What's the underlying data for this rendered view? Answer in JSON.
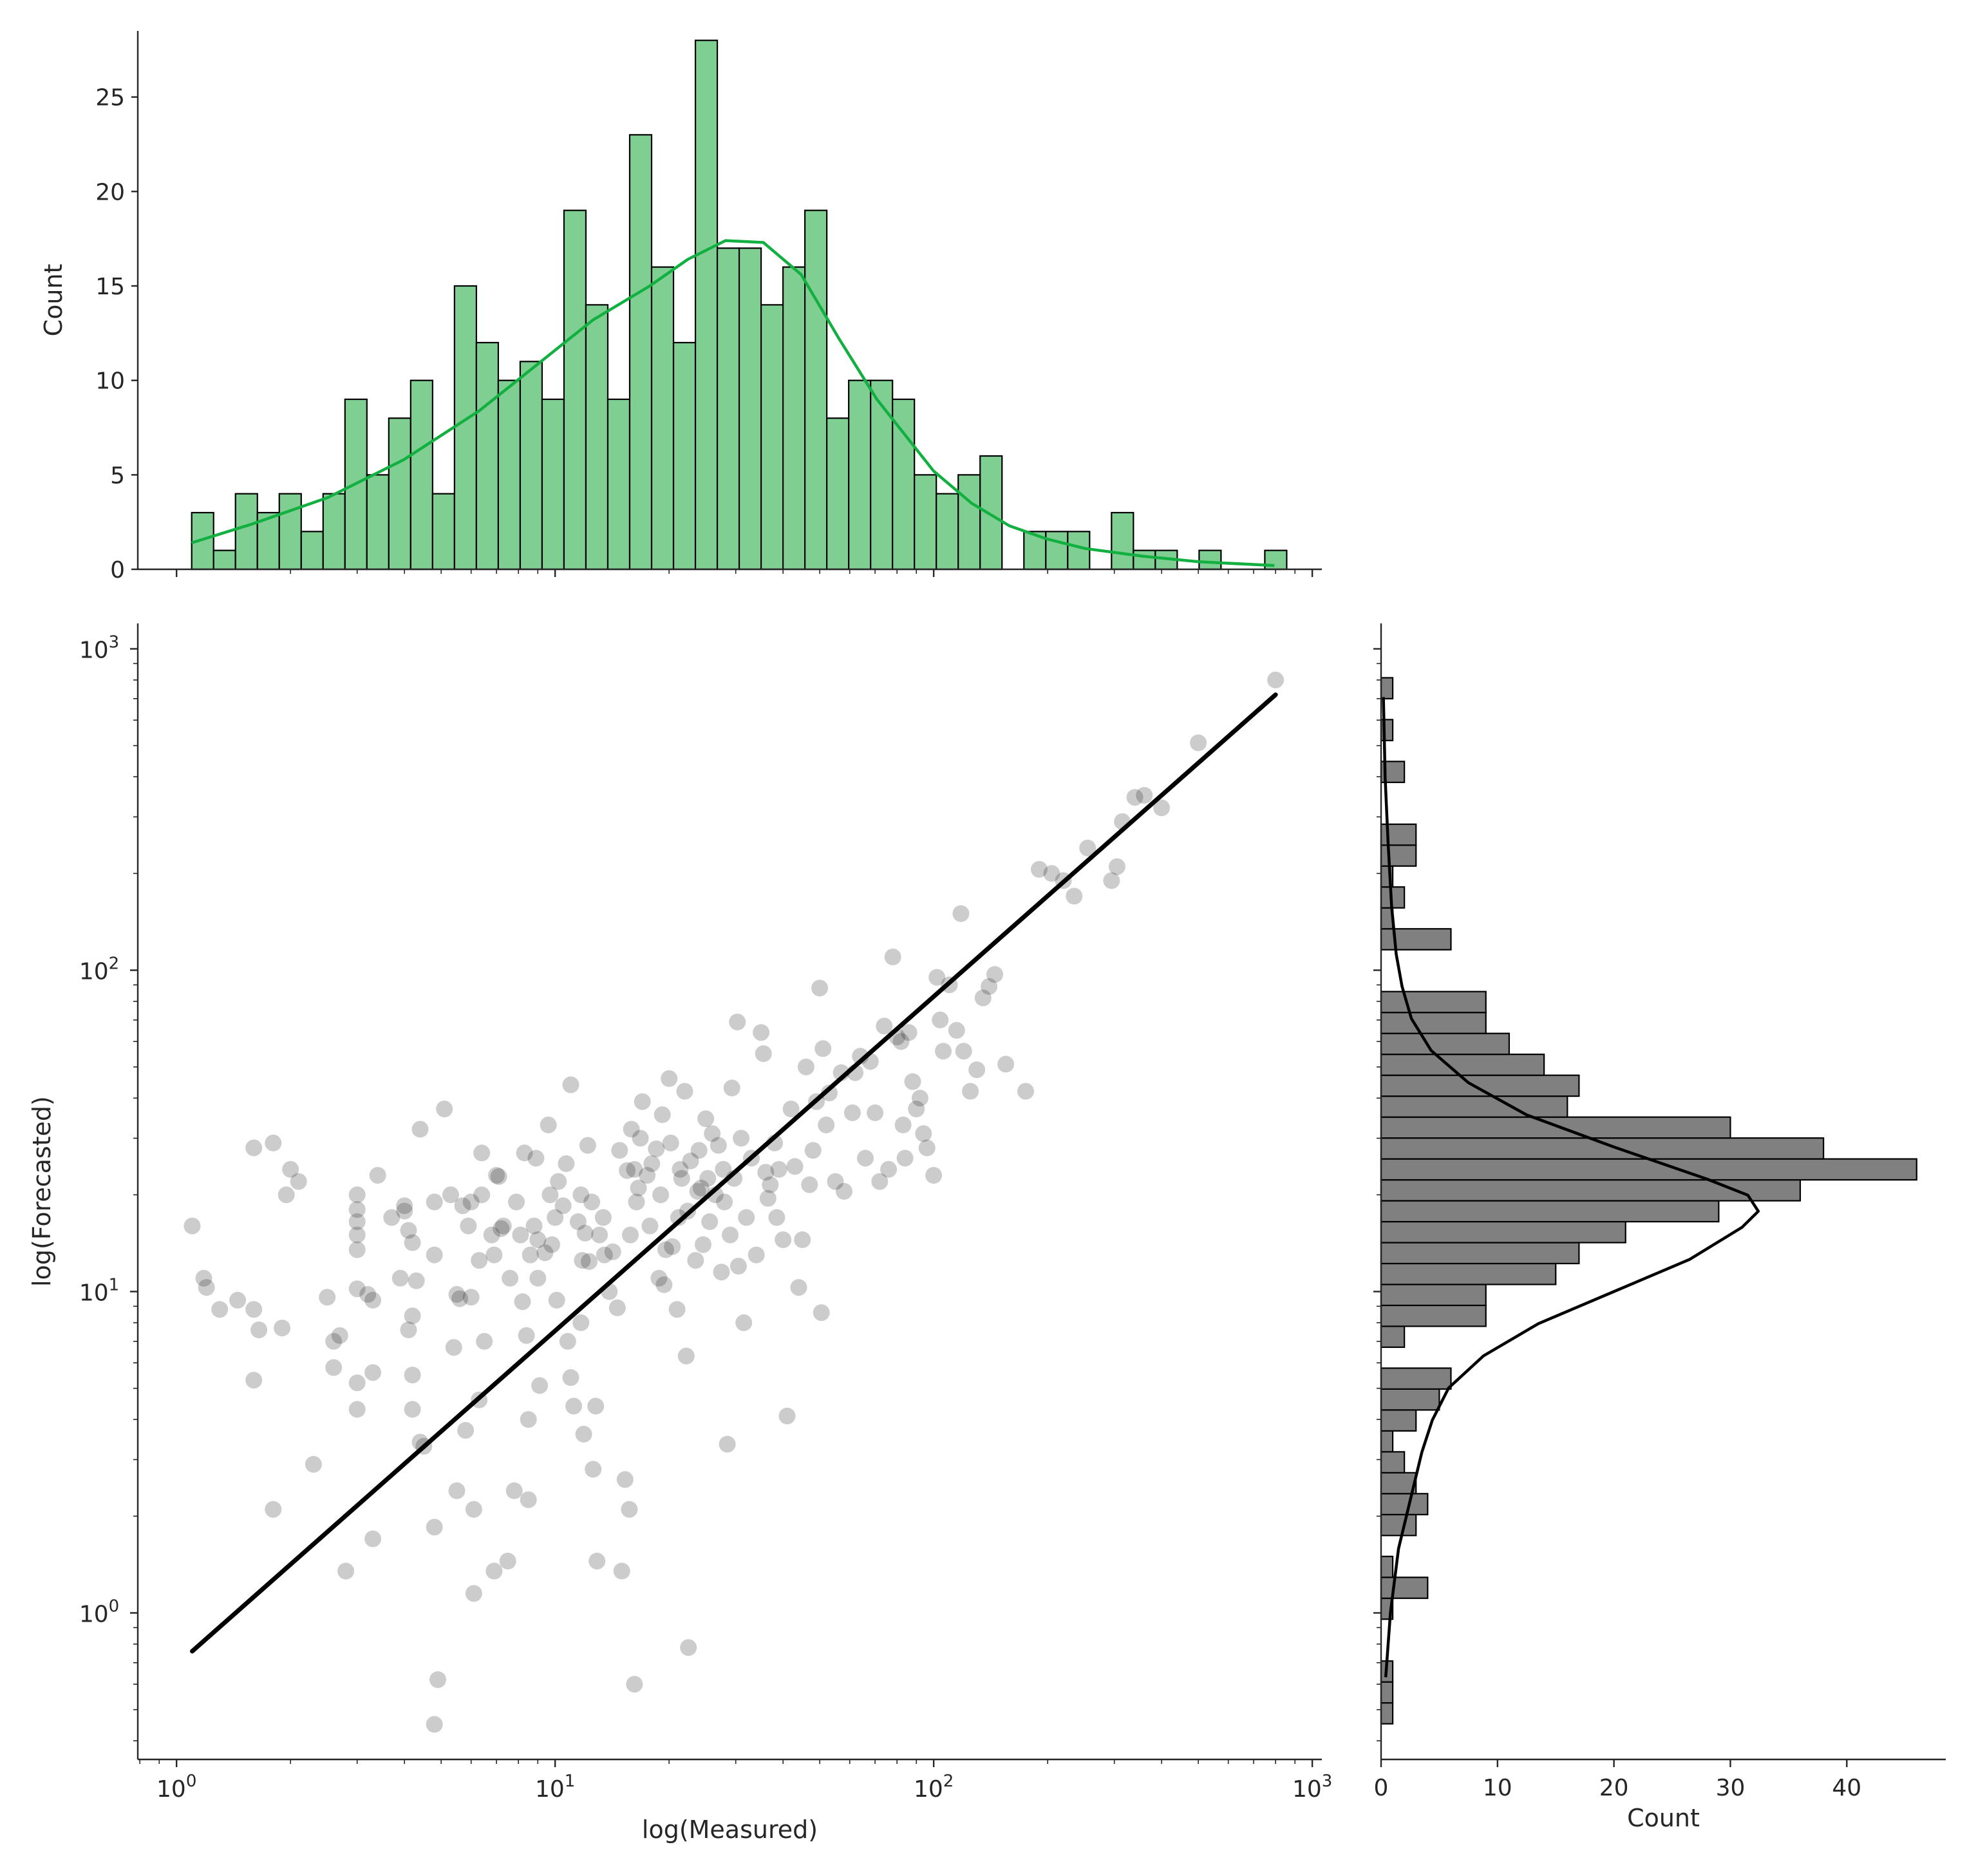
{
  "chart_data": [
    {
      "panel": "top-marginal",
      "type": "bar",
      "xscale": "log",
      "xlim": [
        0.79,
        1060
      ],
      "ylim": [
        0,
        28.5
      ],
      "ylabel": "Count",
      "yticks": [
        0,
        5,
        10,
        15,
        20,
        25
      ],
      "bar_color": "#7fcf93",
      "kde_color": "#12b040",
      "bins": {
        "log10_start": 0.04,
        "log10_width": 0.05785,
        "counts": [
          3,
          1,
          4,
          3,
          4,
          2,
          4,
          9,
          5,
          8,
          10,
          4,
          15,
          12,
          10,
          11,
          9,
          19,
          14,
          9,
          23,
          16,
          12,
          28,
          17,
          17,
          14,
          16,
          19,
          8,
          10,
          10,
          9,
          5,
          4,
          5,
          6,
          0,
          2,
          2,
          2,
          0,
          3,
          1,
          1,
          0,
          1,
          0,
          0,
          1
        ]
      },
      "kde": {
        "log10_x": [
          0.04,
          0.2,
          0.4,
          0.6,
          0.8,
          0.95,
          1.1,
          1.25,
          1.35,
          1.45,
          1.55,
          1.65,
          1.75,
          1.85,
          2.0,
          2.1,
          2.2,
          2.3,
          2.4,
          2.55,
          2.7,
          2.9
        ],
        "count": [
          1.4,
          2.4,
          3.8,
          5.8,
          8.4,
          10.8,
          13.2,
          15.0,
          16.4,
          17.4,
          17.3,
          15.6,
          12.2,
          9.0,
          5.2,
          3.5,
          2.3,
          1.6,
          1.1,
          0.7,
          0.4,
          0.2
        ]
      }
    },
    {
      "panel": "main-scatter",
      "type": "scatter",
      "xscale": "log",
      "yscale": "log",
      "xlabel": "log(Measured)",
      "ylabel": "log(Forecasted)",
      "xlim": [
        0.79,
        1060
      ],
      "ylim": [
        0.35,
        1200
      ],
      "xtick_labels": [
        {
          "base": "10",
          "exp": "0",
          "value": 1
        },
        {
          "base": "10",
          "exp": "1",
          "value": 10
        },
        {
          "base": "10",
          "exp": "2",
          "value": 100
        },
        {
          "base": "10",
          "exp": "3",
          "value": 1000
        }
      ],
      "ytick_labels": [
        {
          "base": "10",
          "exp": "0",
          "value": 1
        },
        {
          "base": "10",
          "exp": "1",
          "value": 10
        },
        {
          "base": "10",
          "exp": "2",
          "value": 100
        },
        {
          "base": "10",
          "exp": "3",
          "value": 1000
        }
      ],
      "point_color": "#000000",
      "point_alpha": 0.2,
      "fit_line": {
        "x": [
          1.1,
          800
        ],
        "y": [
          0.76,
          720
        ],
        "color": "#000000"
      },
      "points": [
        [
          1.1,
          16
        ],
        [
          1.18,
          11
        ],
        [
          1.2,
          10.3
        ],
        [
          1.3,
          8.8
        ],
        [
          1.45,
          9.4
        ],
        [
          1.6,
          8.8
        ],
        [
          1.65,
          7.6
        ],
        [
          1.6,
          5.3
        ],
        [
          1.6,
          28
        ],
        [
          1.8,
          29
        ],
        [
          1.95,
          20
        ],
        [
          2.0,
          24
        ],
        [
          2.1,
          22
        ],
        [
          1.9,
          7.7
        ],
        [
          1.8,
          2.1
        ],
        [
          2.3,
          2.9
        ],
        [
          2.5,
          9.6
        ],
        [
          2.6,
          7.0
        ],
        [
          2.7,
          7.3
        ],
        [
          2.8,
          1.35
        ],
        [
          2.6,
          5.8
        ],
        [
          3.0,
          4.3
        ],
        [
          3.0,
          5.2
        ],
        [
          3.0,
          10.2
        ],
        [
          3.0,
          13.5
        ],
        [
          3.0,
          15
        ],
        [
          3.0,
          16.5
        ],
        [
          3.0,
          18
        ],
        [
          3.0,
          20
        ],
        [
          3.2,
          9.8
        ],
        [
          3.3,
          9.4
        ],
        [
          3.4,
          23
        ],
        [
          3.3,
          5.6
        ],
        [
          3.3,
          1.7
        ],
        [
          3.7,
          17
        ],
        [
          3.9,
          11
        ],
        [
          4.0,
          18.5
        ],
        [
          4.0,
          17.8
        ],
        [
          4.1,
          7.6
        ],
        [
          4.1,
          15.5
        ],
        [
          4.2,
          14.2
        ],
        [
          4.2,
          8.4
        ],
        [
          4.2,
          5.5
        ],
        [
          4.2,
          4.3
        ],
        [
          4.3,
          10.8
        ],
        [
          4.4,
          32
        ],
        [
          4.4,
          3.4
        ],
        [
          4.5,
          3.3
        ],
        [
          4.8,
          13
        ],
        [
          4.8,
          19
        ],
        [
          4.8,
          1.85
        ],
        [
          4.9,
          0.62
        ],
        [
          4.8,
          0.45
        ],
        [
          5.1,
          37
        ],
        [
          5.3,
          20
        ],
        [
          5.5,
          9.8
        ],
        [
          5.4,
          6.7
        ],
        [
          5.5,
          2.4
        ],
        [
          5.7,
          18.5
        ],
        [
          5.6,
          9.5
        ],
        [
          5.8,
          3.7
        ],
        [
          5.9,
          16
        ],
        [
          6.0,
          19
        ],
        [
          6.0,
          9.6
        ],
        [
          6.1,
          2.1
        ],
        [
          6.1,
          1.15
        ],
        [
          6.3,
          12.5
        ],
        [
          6.3,
          4.6
        ],
        [
          6.4,
          27
        ],
        [
          6.4,
          20
        ],
        [
          6.5,
          7.0
        ],
        [
          6.8,
          15
        ],
        [
          6.9,
          13
        ],
        [
          7.0,
          23
        ],
        [
          7.1,
          22.8
        ],
        [
          7.2,
          15.7
        ],
        [
          6.9,
          1.35
        ],
        [
          7.3,
          16
        ],
        [
          7.6,
          11
        ],
        [
          7.5,
          1.45
        ],
        [
          7.8,
          2.4
        ],
        [
          7.9,
          19
        ],
        [
          8.1,
          15
        ],
        [
          8.2,
          9.3
        ],
        [
          8.3,
          27
        ],
        [
          8.4,
          7.3
        ],
        [
          8.5,
          4.0
        ],
        [
          8.5,
          2.25
        ],
        [
          8.6,
          13
        ],
        [
          8.8,
          16
        ],
        [
          8.9,
          26
        ],
        [
          9.0,
          14.5
        ],
        [
          9.0,
          11
        ],
        [
          9.1,
          5.1
        ],
        [
          9.4,
          13.2
        ],
        [
          9.6,
          33
        ],
        [
          9.7,
          20
        ],
        [
          9.8,
          14
        ],
        [
          10.0,
          17
        ],
        [
          10.2,
          22
        ],
        [
          10.1,
          9.4
        ],
        [
          10.5,
          18.5
        ],
        [
          10.7,
          25
        ],
        [
          11.0,
          44
        ],
        [
          10.8,
          7.0
        ],
        [
          11.0,
          5.4
        ],
        [
          11.2,
          4.4
        ],
        [
          11.5,
          16.5
        ],
        [
          11.7,
          20
        ],
        [
          11.7,
          8.0
        ],
        [
          11.8,
          12.5
        ],
        [
          11.9,
          3.6
        ],
        [
          12.0,
          15.2
        ],
        [
          12.2,
          28.5
        ],
        [
          12.3,
          12.4
        ],
        [
          12.5,
          19
        ],
        [
          12.6,
          2.8
        ],
        [
          12.8,
          4.4
        ],
        [
          12.9,
          1.45
        ],
        [
          13.1,
          15
        ],
        [
          13.4,
          17
        ],
        [
          13.5,
          13
        ],
        [
          13.9,
          10
        ],
        [
          14.2,
          13.3
        ],
        [
          14.6,
          8.9
        ],
        [
          14.8,
          27.5
        ],
        [
          15.0,
          1.35
        ],
        [
          15.3,
          2.6
        ],
        [
          15.5,
          23.8
        ],
        [
          15.7,
          2.1
        ],
        [
          15.8,
          15
        ],
        [
          15.9,
          32
        ],
        [
          16.2,
          24
        ],
        [
          16.2,
          0.6
        ],
        [
          16.4,
          19
        ],
        [
          16.6,
          21
        ],
        [
          16.8,
          30
        ],
        [
          17.0,
          39
        ],
        [
          17.5,
          23
        ],
        [
          17.8,
          16
        ],
        [
          18.0,
          25
        ],
        [
          18.5,
          27.8
        ],
        [
          18.8,
          11
        ],
        [
          19.0,
          20
        ],
        [
          19.2,
          35.5
        ],
        [
          19.4,
          10.5
        ],
        [
          19.6,
          13.5
        ],
        [
          20.0,
          46
        ],
        [
          20.2,
          29
        ],
        [
          20.4,
          13.8
        ],
        [
          21.0,
          8.8
        ],
        [
          21.2,
          17
        ],
        [
          21.4,
          24
        ],
        [
          21.6,
          22.5
        ],
        [
          22.0,
          42
        ],
        [
          22.2,
          6.3
        ],
        [
          22.4,
          17.8
        ],
        [
          22.5,
          0.78
        ],
        [
          22.8,
          25.5
        ],
        [
          23.5,
          12.5
        ],
        [
          23.8,
          20.5
        ],
        [
          24.0,
          27.5
        ],
        [
          24.3,
          21
        ],
        [
          24.6,
          14
        ],
        [
          25.0,
          34.5
        ],
        [
          25.3,
          22.5
        ],
        [
          25.6,
          16.5
        ],
        [
          26.0,
          31
        ],
        [
          26.5,
          20
        ],
        [
          27.0,
          28.5
        ],
        [
          27.5,
          11.5
        ],
        [
          27.8,
          24
        ],
        [
          28.0,
          19
        ],
        [
          28.5,
          3.35
        ],
        [
          29.0,
          15
        ],
        [
          29.3,
          43
        ],
        [
          29.7,
          22.5
        ],
        [
          30.3,
          69
        ],
        [
          30.5,
          12
        ],
        [
          31.0,
          30
        ],
        [
          31.5,
          8.0
        ],
        [
          32.0,
          17
        ],
        [
          33.0,
          26
        ],
        [
          34.0,
          13
        ],
        [
          35.0,
          64
        ],
        [
          35.5,
          55
        ],
        [
          36.0,
          23.5
        ],
        [
          36.5,
          19.5
        ],
        [
          37.0,
          21.5
        ],
        [
          38.0,
          29
        ],
        [
          38.5,
          17
        ],
        [
          39.0,
          24
        ],
        [
          40.0,
          14.5
        ],
        [
          41.0,
          4.1
        ],
        [
          42.0,
          37
        ],
        [
          43.0,
          24.5
        ],
        [
          44.0,
          10.3
        ],
        [
          45.0,
          14.5
        ],
        [
          46.0,
          50
        ],
        [
          47.0,
          21.5
        ],
        [
          48.0,
          27.5
        ],
        [
          49.0,
          39
        ],
        [
          50.0,
          88
        ],
        [
          50.5,
          8.6
        ],
        [
          51.0,
          57
        ],
        [
          52.0,
          33
        ],
        [
          53.0,
          41.5
        ],
        [
          55.0,
          22
        ],
        [
          57.0,
          48
        ],
        [
          58.0,
          20.5
        ],
        [
          61.0,
          36
        ],
        [
          62.0,
          48
        ],
        [
          64.0,
          54
        ],
        [
          66.0,
          26
        ],
        [
          68.0,
          52
        ],
        [
          70.0,
          36
        ],
        [
          72.0,
          22
        ],
        [
          74.0,
          67
        ],
        [
          76.0,
          24
        ],
        [
          78.0,
          110
        ],
        [
          80.0,
          62
        ],
        [
          82.0,
          60
        ],
        [
          83.0,
          33
        ],
        [
          84.0,
          26
        ],
        [
          86.0,
          64
        ],
        [
          88.0,
          45
        ],
        [
          90.0,
          37
        ],
        [
          92.0,
          40
        ],
        [
          94.0,
          31
        ],
        [
          96.0,
          28
        ],
        [
          100.0,
          23
        ],
        [
          102.0,
          95
        ],
        [
          104.0,
          70
        ],
        [
          106.0,
          56
        ],
        [
          110.0,
          90
        ],
        [
          115.0,
          65
        ],
        [
          118.0,
          150
        ],
        [
          120.0,
          56
        ],
        [
          125.0,
          42
        ],
        [
          130.0,
          49
        ],
        [
          135.0,
          82
        ],
        [
          140.0,
          89
        ],
        [
          145.0,
          97
        ],
        [
          155.0,
          51
        ],
        [
          175.0,
          42
        ],
        [
          190.0,
          206
        ],
        [
          205.0,
          200
        ],
        [
          220.0,
          190
        ],
        [
          235.0,
          170
        ],
        [
          255.0,
          240
        ],
        [
          295.0,
          190
        ],
        [
          305.0,
          210
        ],
        [
          315.0,
          290
        ],
        [
          340.0,
          345
        ],
        [
          360.0,
          350
        ],
        [
          400.0,
          320
        ],
        [
          500.0,
          510
        ],
        [
          800.0,
          800
        ]
      ]
    },
    {
      "panel": "right-marginal",
      "type": "bar",
      "orientation": "horizontal",
      "yscale": "log",
      "ylim": [
        0.35,
        1200
      ],
      "xlim": [
        0,
        48.5
      ],
      "xlabel": "Count",
      "xticks": [
        0,
        10,
        20,
        30,
        40
      ],
      "bar_color": "#808080",
      "kde_color": "#000000",
      "bins": {
        "log10_start": -0.345,
        "log10_width": 0.0651,
        "counts": [
          1,
          1,
          1,
          0,
          0,
          1,
          4,
          1,
          0,
          3,
          4,
          3,
          2,
          1,
          3,
          5,
          6,
          0,
          2,
          9,
          9,
          15,
          17,
          21,
          29,
          36,
          46,
          38,
          30,
          16,
          17,
          14,
          11,
          9,
          9,
          0,
          0,
          6,
          1,
          2,
          1,
          3,
          3,
          0,
          0,
          2,
          0,
          1,
          0,
          1
        ]
      },
      "kde": {
        "log10_y": [
          -0.2,
          0.0,
          0.2,
          0.35,
          0.5,
          0.6,
          0.7,
          0.8,
          0.9,
          1.0,
          1.1,
          1.2,
          1.25,
          1.3,
          1.35,
          1.45,
          1.55,
          1.65,
          1.75,
          1.85,
          1.95,
          2.05,
          2.2,
          2.4,
          2.6,
          2.85
        ],
        "count": [
          0.4,
          0.8,
          1.5,
          2.5,
          3.5,
          4.4,
          5.8,
          8.8,
          13.5,
          20.0,
          26.5,
          31.0,
          32.4,
          31.5,
          28.0,
          20.0,
          12.5,
          7.5,
          4.3,
          2.6,
          1.8,
          1.3,
          0.9,
          0.6,
          0.35,
          0.2
        ]
      }
    }
  ]
}
